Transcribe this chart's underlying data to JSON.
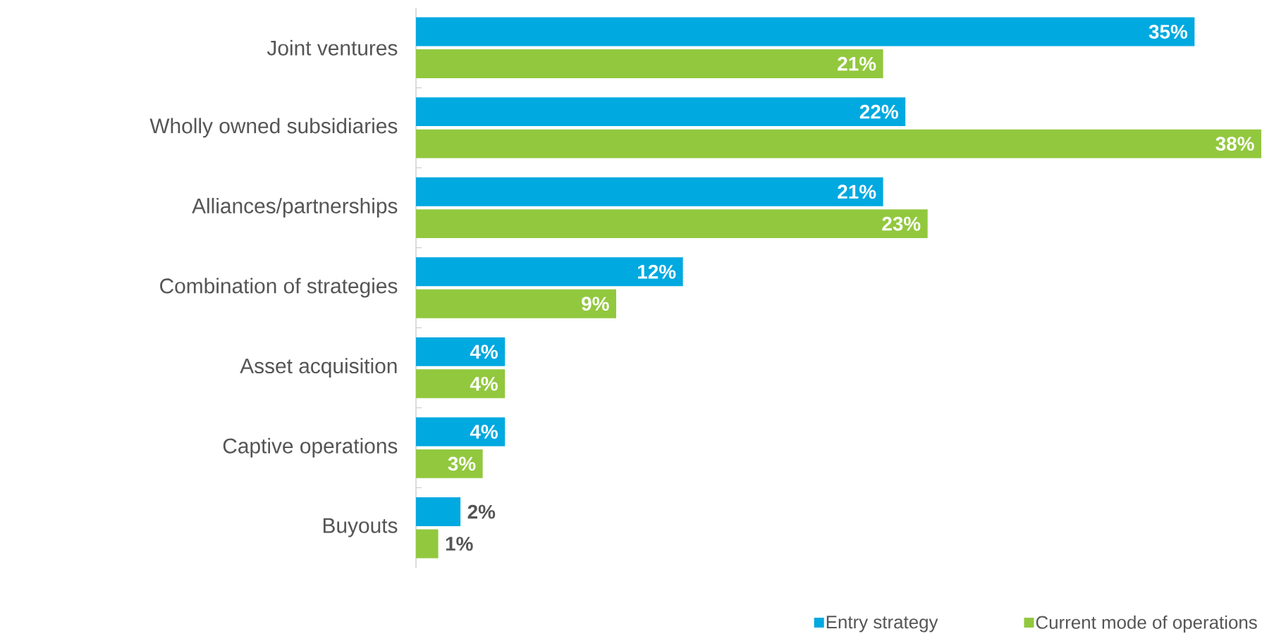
{
  "chart_data": {
    "type": "bar",
    "orientation": "horizontal",
    "legend": "bottom right",
    "categories": [
      "Joint ventures",
      "Wholly owned subsidiaries",
      "Alliances/partnerships",
      "Combination of strategies",
      "Asset acquisition",
      "Captive operations",
      "Buyouts"
    ],
    "series": [
      {
        "name": "Entry strategy",
        "color": "#00a9e0",
        "values": [
          35,
          22,
          21,
          12,
          4,
          4,
          2
        ],
        "value_labels": [
          "35%",
          "22%",
          "21%",
          "12%",
          "4%",
          "4%",
          "2%"
        ]
      },
      {
        "name": "Current mode of operations",
        "color": "#92c83e",
        "values": [
          21,
          38,
          23,
          9,
          4,
          3,
          1
        ],
        "value_labels": [
          "21%",
          "38%",
          "23%",
          "9%",
          "4%",
          "3%",
          "1%"
        ]
      }
    ]
  }
}
